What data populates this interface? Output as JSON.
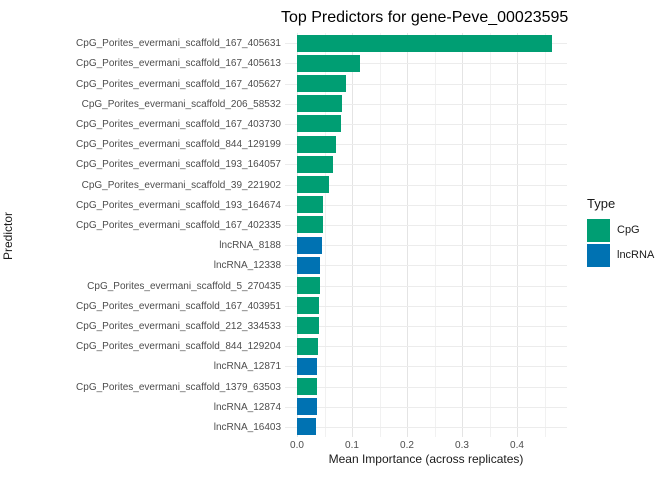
{
  "chart_data": {
    "type": "bar",
    "orientation": "horizontal",
    "title": "Top Predictors for gene-Peve_00023595",
    "xlabel": "Mean Importance (across replicates)",
    "ylabel": "Predictor",
    "xlim": [
      0,
      0.49
    ],
    "xticks": [
      0.0,
      0.1,
      0.2,
      0.3,
      0.4
    ],
    "grid": {
      "vertical_major_step": 0.1,
      "vertical_minor_step": 0.05,
      "horizontal": "one line per category"
    },
    "categories": [
      "CpG_Porites_evermani_scaffold_167_405631",
      "CpG_Porites_evermani_scaffold_167_405613",
      "CpG_Porites_evermani_scaffold_167_405627",
      "CpG_Porites_evermani_scaffold_206_58532",
      "CpG_Porites_evermani_scaffold_167_403730",
      "CpG_Porites_evermani_scaffold_844_129199",
      "CpG_Porites_evermani_scaffold_193_164057",
      "CpG_Porites_evermani_scaffold_39_221902",
      "CpG_Porites_evermani_scaffold_193_164674",
      "CpG_Porites_evermani_scaffold_167_402335",
      "lncRNA_8188",
      "lncRNA_12338",
      "CpG_Porites_evermani_scaffold_5_270435",
      "CpG_Porites_evermani_scaffold_167_403951",
      "CpG_Porites_evermani_scaffold_212_334533",
      "CpG_Porites_evermani_scaffold_844_129204",
      "lncRNA_12871",
      "CpG_Porites_evermani_scaffold_1379_63503",
      "lncRNA_12874",
      "lncRNA_16403"
    ],
    "values": [
      0.464,
      0.114,
      0.089,
      0.082,
      0.08,
      0.07,
      0.066,
      0.058,
      0.047,
      0.0465,
      0.045,
      0.0425,
      0.042,
      0.0405,
      0.04,
      0.0375,
      0.037,
      0.0365,
      0.036,
      0.034
    ],
    "types": [
      "CpG",
      "CpG",
      "CpG",
      "CpG",
      "CpG",
      "CpG",
      "CpG",
      "CpG",
      "CpG",
      "CpG",
      "lncRNA",
      "lncRNA",
      "CpG",
      "CpG",
      "CpG",
      "CpG",
      "lncRNA",
      "CpG",
      "lncRNA",
      "lncRNA"
    ],
    "colors": {
      "CpG": "#009E73",
      "lncRNA": "#0072B2"
    },
    "legend": {
      "title": "Type",
      "position": "right",
      "items": [
        {
          "label": "CpG",
          "color": "#009E73"
        },
        {
          "label": "lncRNA",
          "color": "#0072B2"
        }
      ]
    }
  }
}
